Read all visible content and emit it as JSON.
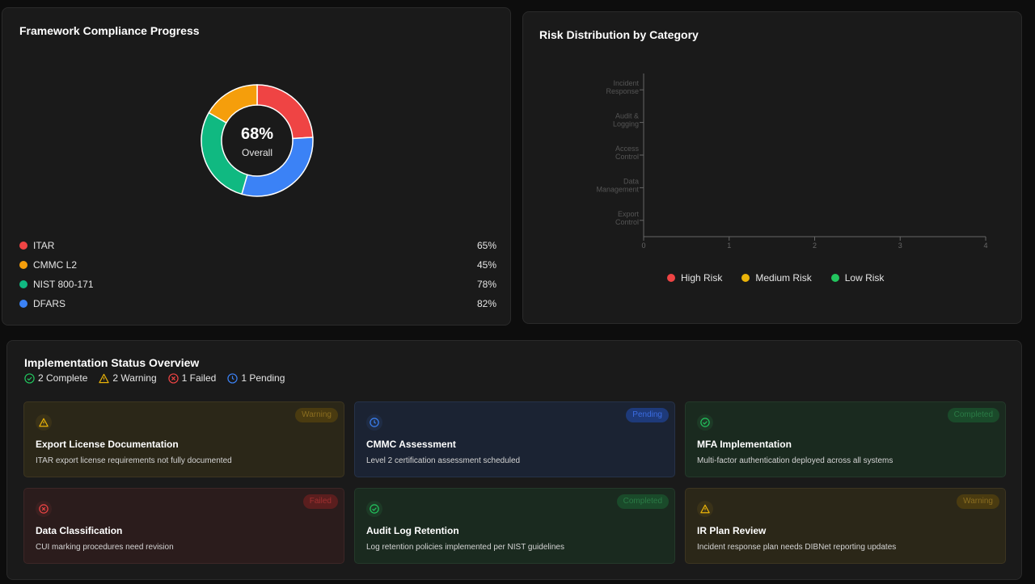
{
  "compliance": {
    "title": "Framework Compliance Progress",
    "overall_pct": "68%",
    "overall_label": "Overall",
    "frameworks": [
      {
        "name": "ITAR",
        "value": 65,
        "label": "65%",
        "color": "#ef4444"
      },
      {
        "name": "CMMC L2",
        "value": 45,
        "label": "45%",
        "color": "#f59e0b"
      },
      {
        "name": "NIST 800-171",
        "value": 78,
        "label": "78%",
        "color": "#10b981"
      },
      {
        "name": "DFARS",
        "value": 82,
        "label": "82%",
        "color": "#3b82f6"
      }
    ]
  },
  "chart_data": [
    {
      "type": "pie",
      "title": "Framework Compliance Progress",
      "categories": [
        "ITAR",
        "CMMC L2",
        "NIST 800-171",
        "DFARS"
      ],
      "values": [
        65,
        45,
        78,
        82
      ],
      "center_label": "68% Overall",
      "legend": "bottom"
    },
    {
      "type": "bar",
      "orientation": "horizontal",
      "title": "Risk Distribution by Category",
      "categories": [
        "Incident Response",
        "Audit & Logging",
        "Access Control",
        "Data Management",
        "Export Control"
      ],
      "category_lines": [
        [
          "Incident",
          "Response"
        ],
        [
          "Audit &",
          "Logging"
        ],
        [
          "Access",
          "Control"
        ],
        [
          "Data",
          "Management"
        ],
        [
          "Export",
          "Control"
        ]
      ],
      "series": [
        {
          "name": "High Risk",
          "values": [
            0,
            0,
            0,
            0,
            0
          ],
          "color": "#ef4444"
        },
        {
          "name": "Medium Risk",
          "values": [
            0,
            0,
            0,
            0,
            0
          ],
          "color": "#eab308"
        },
        {
          "name": "Low Risk",
          "values": [
            0,
            0,
            0,
            0,
            0
          ],
          "color": "#22c55e"
        }
      ],
      "xlim": [
        0,
        4
      ],
      "xticks": [
        "0",
        "1",
        "2",
        "3",
        "4"
      ],
      "legend": "bottom"
    }
  ],
  "risk": {
    "title": "Risk Distribution by Category"
  },
  "implementation": {
    "title": "Implementation Status Overview",
    "summary": [
      {
        "label": "2 Complete",
        "kind": "complete"
      },
      {
        "label": "2 Warning",
        "kind": "warning"
      },
      {
        "label": "1 Failed",
        "kind": "failed"
      },
      {
        "label": "1 Pending",
        "kind": "pending"
      }
    ],
    "items": [
      {
        "title": "Export License Documentation",
        "desc": "ITAR export license requirements not fully documented",
        "status": "Warning",
        "kind": "warning"
      },
      {
        "title": "CMMC Assessment",
        "desc": "Level 2 certification assessment scheduled",
        "status": "Pending",
        "kind": "pending"
      },
      {
        "title": "MFA Implementation",
        "desc": "Multi-factor authentication deployed across all systems",
        "status": "Completed",
        "kind": "completed"
      },
      {
        "title": "Data Classification",
        "desc": "CUI marking procedures need revision",
        "status": "Failed",
        "kind": "failed"
      },
      {
        "title": "Audit Log Retention",
        "desc": "Log retention policies implemented per NIST guidelines",
        "status": "Completed",
        "kind": "completed"
      },
      {
        "title": "IR Plan Review",
        "desc": "Incident response plan needs DIBNet reporting updates",
        "status": "Warning",
        "kind": "warning"
      }
    ]
  }
}
